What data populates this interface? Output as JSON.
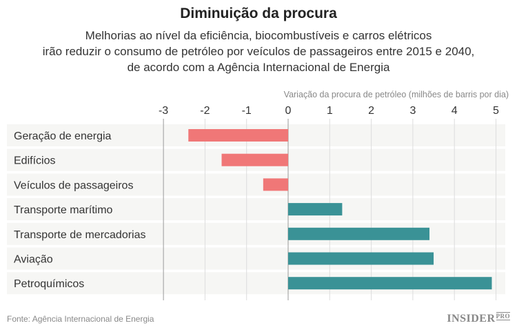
{
  "chart_data": {
    "type": "bar",
    "orientation": "horizontal",
    "title": "Diminuição da procura",
    "subtitle": [
      "Melhorias ao nível da eficiência, biocombustíveis e carros elétricos",
      "irão reduzir o consumo de petróleo por veículos de passageiros entre 2015 e 2040,",
      "de acordo com a Agência Internacional de Energia"
    ],
    "xlabel": "Variação da procura de petróleo (milhões de barris por dia)",
    "ylabel": "",
    "xlim": [
      -3,
      5.3
    ],
    "ticks": [
      -3,
      -2,
      -1,
      0,
      1,
      2,
      3,
      4,
      5
    ],
    "grid": true,
    "categories": [
      "Geração de energia",
      "Edifícios",
      "Veículos de passageiros",
      "Transporte marítimo",
      "Transporte de mercadorias",
      "Aviação",
      "Petroquímicos"
    ],
    "values": [
      -2.4,
      -1.6,
      -0.6,
      1.3,
      3.4,
      3.5,
      4.9
    ],
    "colors": {
      "negative": "#f07777",
      "positive": "#3a9296"
    },
    "source": "Fonte: Agência Internacional de Energia"
  },
  "brand": {
    "name": "INSIDER",
    "suffix": "PRO"
  }
}
